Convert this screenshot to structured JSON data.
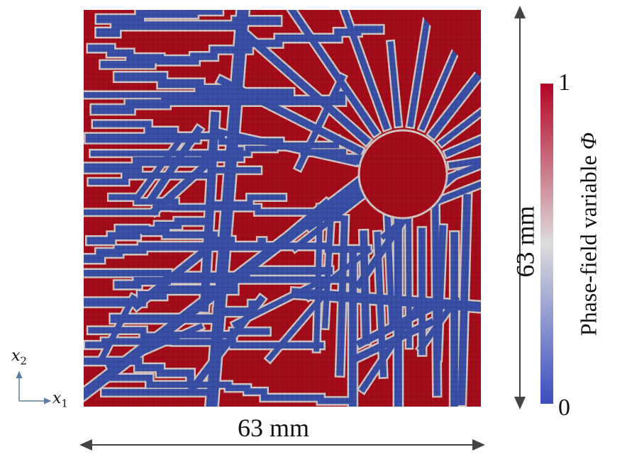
{
  "figure": {
    "field_label_prefix": "Phase-field variable ",
    "field_symbol": "Φ",
    "colorbar": {
      "max_label": "1",
      "min_label": "0",
      "colors": [
        "#3b4cc0",
        "#dddddd",
        "#b40426"
      ]
    },
    "dimension_bottom": "63 mm",
    "dimension_right": "63 mm",
    "axis_x1": "x",
    "axis_x1_sub": "1",
    "axis_x2": "x",
    "axis_x2_sub": "2",
    "phase_colors": {
      "solid": "#a50d1b",
      "void": "#3a4fa6",
      "interface": "#d3c7c3"
    }
  }
}
